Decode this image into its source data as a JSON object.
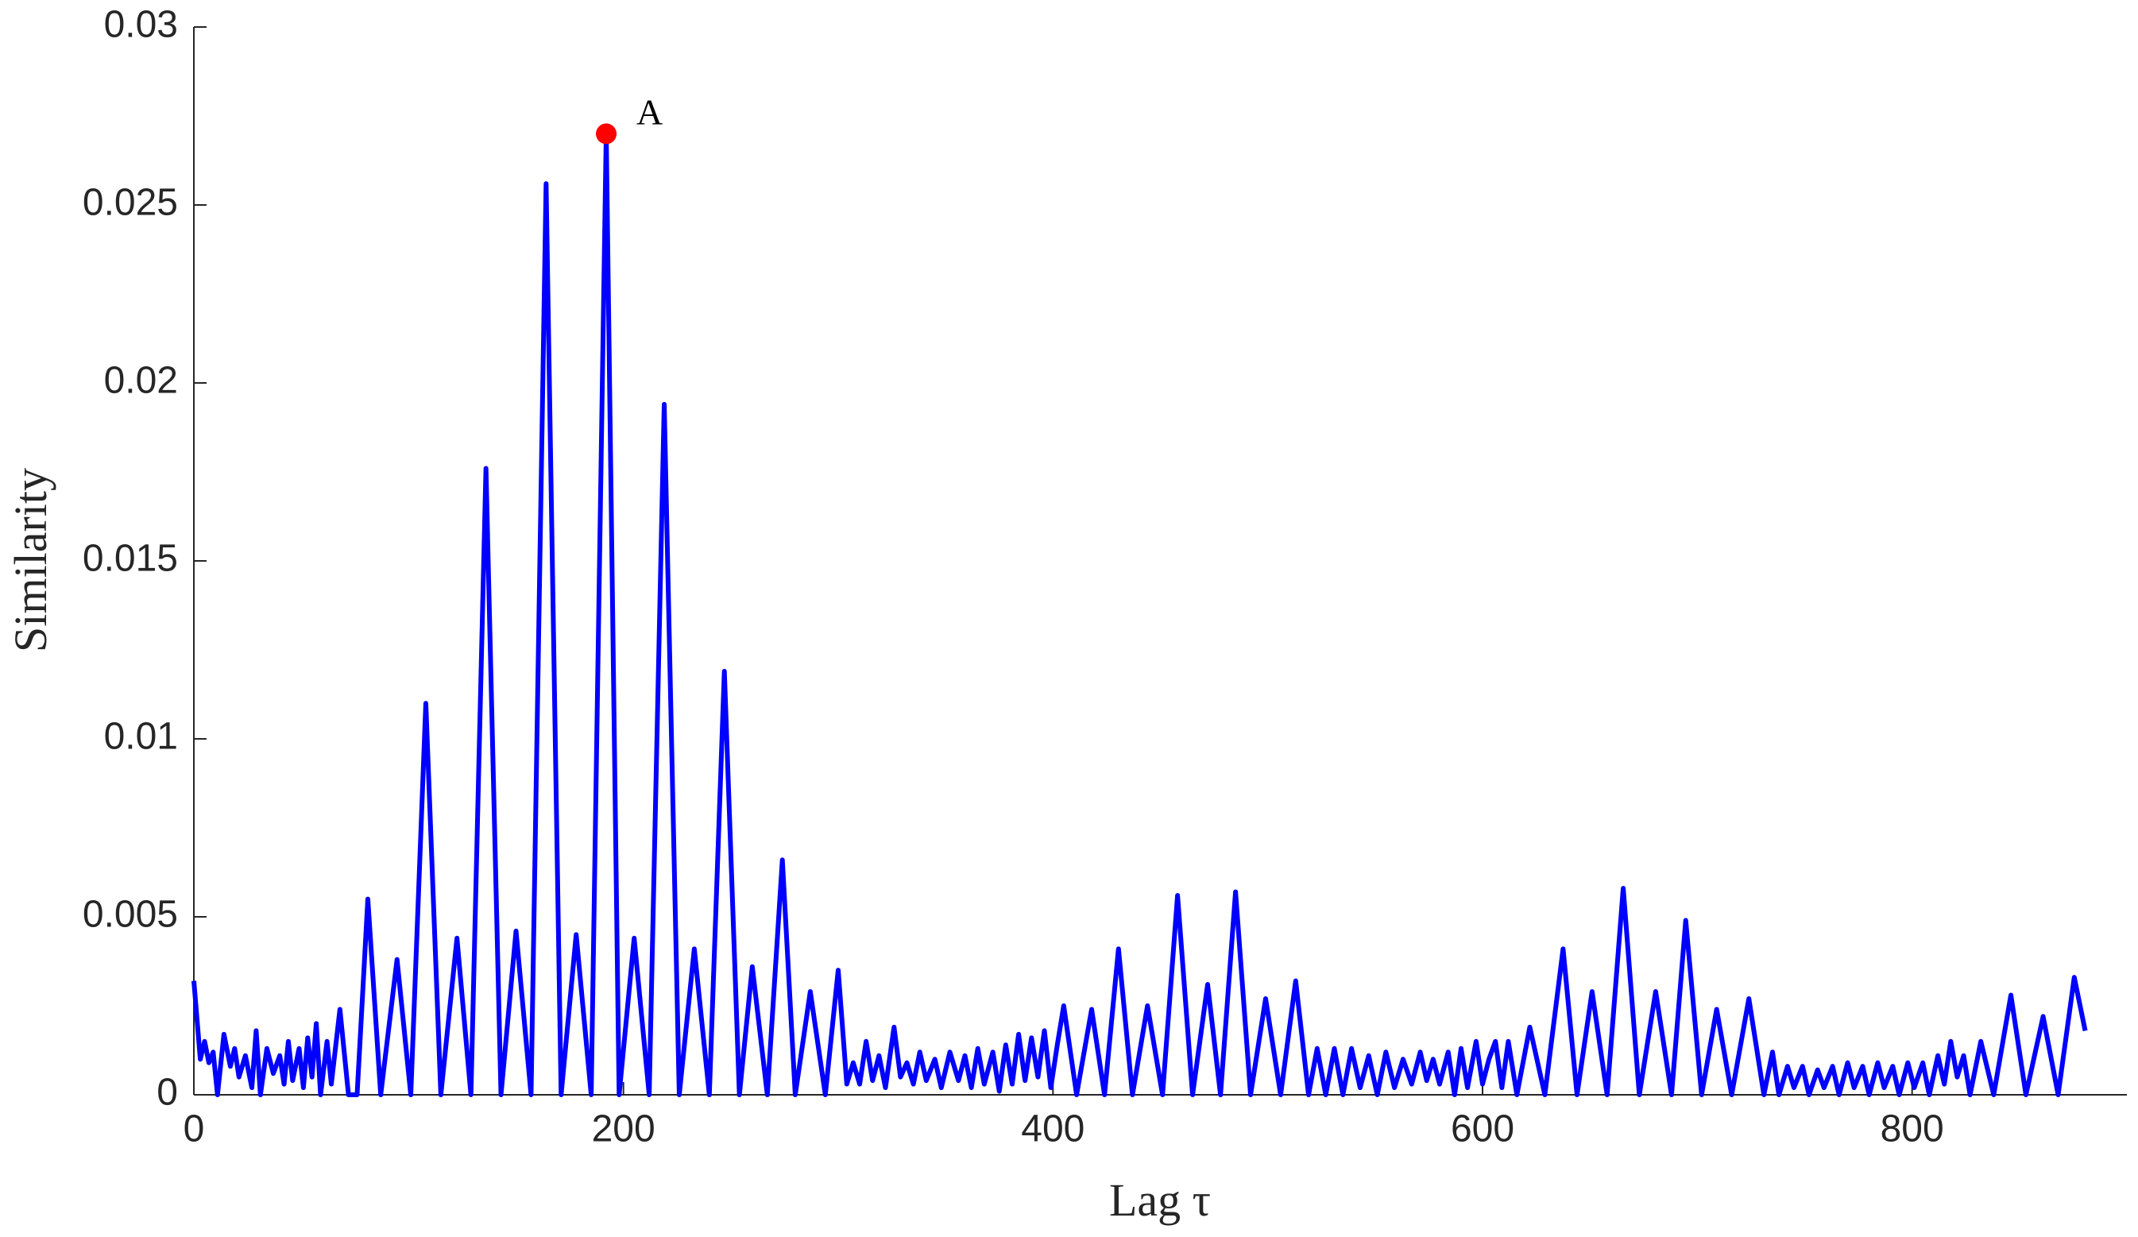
{
  "chart_data": {
    "type": "line",
    "xlabel": "Lag τ",
    "ylabel": "Similarity",
    "color": "#0000ff",
    "x": [
      0,
      3,
      5,
      7,
      9,
      11,
      14,
      17,
      19,
      21,
      24,
      27,
      29,
      31,
      34,
      37,
      40,
      42,
      44,
      46,
      49,
      51,
      53,
      55,
      57,
      59,
      62,
      64,
      68,
      72,
      76,
      81,
      87,
      94.6,
      101,
      108,
      115,
      122.5,
      129,
      136,
      143,
      150,
      157,
      164,
      171,
      178,
      185,
      192,
      198,
      205,
      212,
      219,
      226,
      233,
      240,
      247,
      254,
      260,
      267,
      274,
      280,
      287,
      294,
      300,
      304,
      307,
      310,
      313,
      316,
      319,
      322,
      326,
      329,
      332,
      335,
      338,
      341,
      345,
      348,
      352,
      356,
      359,
      362,
      365,
      368,
      372,
      375,
      378,
      381,
      384,
      387,
      390,
      393,
      396,
      399,
      402,
      405,
      411,
      418,
      424,
      430.5,
      437,
      444,
      451,
      458,
      465,
      472,
      478,
      485,
      492,
      499,
      506,
      513,
      519,
      523,
      527,
      531,
      535,
      539,
      543,
      547,
      551,
      555,
      559,
      563,
      567,
      571,
      574,
      577,
      580,
      584,
      587,
      590,
      593,
      597,
      600,
      603,
      606,
      609,
      612,
      616,
      622,
      629,
      637.5,
      644,
      651,
      658,
      665.5,
      673,
      680.6,
      688,
      694.6,
      702,
      709,
      716,
      724,
      731,
      735,
      738,
      742,
      745,
      749,
      752,
      756,
      759,
      763,
      766,
      770,
      773,
      777,
      780,
      784,
      787,
      791,
      794,
      798,
      801,
      805,
      808,
      812,
      815,
      818,
      821,
      824,
      827,
      832,
      838,
      846,
      853,
      861,
      868,
      875.5,
      880.6
    ],
    "values": [
      0.0032,
      0.001,
      0.0015,
      0.0009,
      0.0012,
      0,
      0.0017,
      0.0008,
      0.0013,
      0.0005,
      0.0011,
      0.0002,
      0.0018,
      0,
      0.0013,
      0.0006,
      0.0011,
      0.0003,
      0.0015,
      0.0004,
      0.0013,
      0.0002,
      0.0016,
      0.0005,
      0.002,
      0,
      0.0015,
      0.0003,
      0.0024,
      0,
      0,
      0.0055,
      0,
      0.0038,
      0,
      0.011,
      0,
      0.0044,
      0,
      0.0176,
      0,
      0.0046,
      0,
      0.0256,
      0,
      0.0045,
      0,
      0.027,
      0,
      0.0044,
      0,
      0.0194,
      0,
      0.0041,
      0,
      0.0119,
      0,
      0.0036,
      0,
      0.0066,
      0,
      0.0029,
      0,
      0.0035,
      0.0003,
      0.0009,
      0.0003,
      0.0015,
      0.0004,
      0.0011,
      0.0002,
      0.0019,
      0.0005,
      0.0009,
      0.0003,
      0.0012,
      0.0004,
      0.001,
      0.0002,
      0.0012,
      0.0004,
      0.0011,
      0.0002,
      0.0013,
      0.0003,
      0.0012,
      0.0001,
      0.0014,
      0.0003,
      0.0017,
      0.0004,
      0.0016,
      0.0005,
      0.0018,
      0.0002,
      0.0014,
      0.0025,
      0,
      0.0024,
      0,
      0.0041,
      0,
      0.0025,
      0,
      0.0056,
      0,
      0.0031,
      0,
      0.0057,
      0,
      0.0027,
      0,
      0.0032,
      0,
      0.0013,
      0,
      0.0013,
      0,
      0.0013,
      0.0002,
      0.0011,
      0,
      0.0012,
      0.0002,
      0.001,
      0.0003,
      0.0012,
      0.0004,
      0.001,
      0.0003,
      0.0012,
      0,
      0.0013,
      0.0002,
      0.0015,
      0.0003,
      0.001,
      0.0015,
      0.0002,
      0.0015,
      0,
      0.0019,
      0,
      0.0041,
      0,
      0.0029,
      0,
      0.0058,
      0,
      0.0029,
      0,
      0.0049,
      0,
      0.0024,
      0,
      0.0027,
      0,
      0.0012,
      0,
      0.0008,
      0.0002,
      0.0008,
      0,
      0.0007,
      0.0002,
      0.0008,
      0,
      0.0009,
      0.0002,
      0.0008,
      0,
      0.0009,
      0.0002,
      0.0008,
      0,
      0.0009,
      0.0002,
      0.0009,
      0,
      0.0011,
      0.0003,
      0.0015,
      0.0005,
      0.0011,
      0,
      0.0015,
      0,
      0.0028,
      0,
      0.0022,
      0,
      0.0033,
      0.0018
    ],
    "xlim": [
      0,
      900
    ],
    "ylim": [
      0,
      0.03
    ],
    "xticks": [
      0,
      200,
      400,
      600,
      800
    ],
    "yticks": [
      0,
      0.005,
      0.01,
      0.015,
      0.02,
      0.025,
      0.03
    ],
    "annotations": [
      {
        "text": "A",
        "x": 192,
        "y": 0.027,
        "color": "#ff0000"
      }
    ]
  }
}
